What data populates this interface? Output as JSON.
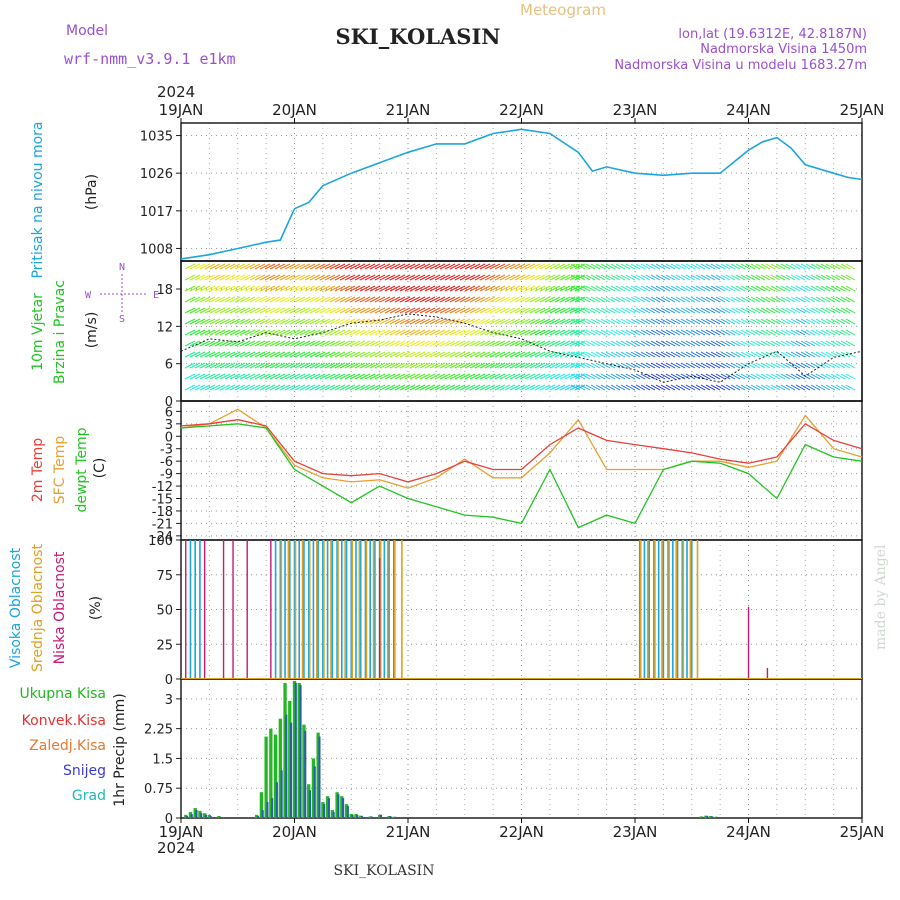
{
  "header": {
    "model_label": "Model",
    "model_name": "wrf-nmm_v3.9.1 e1km",
    "meteogram_label": "Meteogram",
    "station": "SKI_KOLASIN",
    "coords": "lon,lat (19.6312E, 42.8187N)",
    "elevation": "Nadmorska Visina 1450m",
    "model_elevation": "Nadmorska Visina u modelu 1683.27m"
  },
  "footer": {
    "station": "SKI_KOLASIN",
    "watermark": "made by Angel"
  },
  "time_axis": {
    "year": "2024",
    "ticks": [
      "19JAN",
      "20JAN",
      "21JAN",
      "22JAN",
      "23JAN",
      "24JAN",
      "25JAN"
    ]
  },
  "panels": {
    "pressure": {
      "title": "Pritisak na nivou mora",
      "unit": "(hPa)"
    },
    "wind": {
      "title1": "10m Vjetar",
      "title2": "Brzina i Pravac",
      "unit": "(m/s)",
      "compass": {
        "n": "N",
        "s": "S",
        "e": "E",
        "w": "W"
      }
    },
    "temp": {
      "title1": "2m Temp",
      "title2": "SFC Temp",
      "title3": "dewpt Temp",
      "unit": "(C)"
    },
    "cloud": {
      "title1": "Visoka Oblacnost",
      "title2": "Srednja Oblacnost",
      "title3": "Niska Oblacnost",
      "unit": "(%)"
    },
    "precip": {
      "legend": [
        "Ukupna Kisa",
        "Konvek.Kisa",
        "Zaledj.Kisa",
        "Snijeg",
        "Grad"
      ],
      "unit": "1hr Precip (mm)"
    }
  },
  "colors": {
    "pressure": "#1aa6e0",
    "temp2m": "#e8413a",
    "sfc": "#e8a030",
    "dew": "#22c422",
    "high": "#1aa6e0",
    "mid": "#e0a020",
    "low": "#c8187a",
    "total": "#22b822",
    "conv": "#e83030",
    "frz": "#e87830",
    "snow": "#3a3ae0",
    "hail": "#20b8b8"
  },
  "chart_data": [
    {
      "type": "line",
      "title": "Pritisak na nivou mora",
      "ylabel": "(hPa)",
      "yticks": [
        1008,
        1017,
        1026,
        1035
      ],
      "ylim": [
        1005,
        1038
      ],
      "x": [
        "2024-01-19 00:00",
        "2024-01-19 06:00",
        "2024-01-19 12:00",
        "2024-01-19 18:00",
        "2024-01-19 21:00",
        "2024-01-20 00:00",
        "2024-01-20 03:00",
        "2024-01-20 06:00",
        "2024-01-20 12:00",
        "2024-01-20 18:00",
        "2024-01-21 00:00",
        "2024-01-21 06:00",
        "2024-01-21 12:00",
        "2024-01-21 18:00",
        "2024-01-22 00:00",
        "2024-01-22 06:00",
        "2024-01-22 12:00",
        "2024-01-22 15:00",
        "2024-01-22 18:00",
        "2024-01-23 00:00",
        "2024-01-23 06:00",
        "2024-01-23 12:00",
        "2024-01-23 18:00",
        "2024-01-24 00:00",
        "2024-01-24 03:00",
        "2024-01-24 06:00",
        "2024-01-24 09:00",
        "2024-01-24 12:00",
        "2024-01-24 18:00",
        "2024-01-24 21:00",
        "2024-01-25 00:00"
      ],
      "series": [
        {
          "values": [
            1005.5,
            1006.5,
            1008,
            1009.5,
            1010,
            1017.5,
            1019,
            1023,
            1026,
            1028.5,
            1031,
            1033,
            1033,
            1035.5,
            1036.5,
            1035.5,
            1031,
            1026.5,
            1027.5,
            1026,
            1025.5,
            1026,
            1026,
            1031.5,
            1033.5,
            1034.5,
            1032,
            1028,
            1026,
            1025,
            1024.5
          ]
        }
      ]
    },
    {
      "type": "line",
      "title": "10m Vjetar Brzina i Pravac",
      "ylabel": "(m/s)",
      "yticks": [
        0,
        6,
        12,
        18
      ],
      "ylim": [
        0,
        22.5
      ],
      "x": [
        "2024-01-19 00:00",
        "2024-01-19 06:00",
        "2024-01-19 12:00",
        "2024-01-19 18:00",
        "2024-01-20 00:00",
        "2024-01-20 06:00",
        "2024-01-20 12:00",
        "2024-01-20 18:00",
        "2024-01-21 00:00",
        "2024-01-21 06:00",
        "2024-01-21 12:00",
        "2024-01-21 18:00",
        "2024-01-22 00:00",
        "2024-01-22 06:00",
        "2024-01-22 12:00",
        "2024-01-22 18:00",
        "2024-01-23 00:00",
        "2024-01-23 06:00",
        "2024-01-23 12:00",
        "2024-01-23 18:00",
        "2024-01-24 00:00",
        "2024-01-24 06:00",
        "2024-01-24 12:00",
        "2024-01-24 18:00",
        "2024-01-25 00:00"
      ],
      "series": [
        {
          "values": [
            8,
            10,
            9.5,
            11,
            10,
            11,
            12.5,
            13,
            14,
            13.5,
            12.5,
            11,
            10,
            8,
            7,
            6,
            5,
            3,
            4,
            3,
            6,
            8,
            4,
            7,
            8
          ]
        }
      ]
    },
    {
      "type": "line",
      "title": "Temp",
      "ylabel": "(C)",
      "yticks": [
        6,
        3,
        0,
        -3,
        -6,
        -9,
        -12,
        -15,
        -18,
        -21,
        -24
      ],
      "ylim": [
        -25,
        8.5
      ],
      "x": [
        "2024-01-19 00:00",
        "2024-01-19 06:00",
        "2024-01-19 12:00",
        "2024-01-19 18:00",
        "2024-01-20 00:00",
        "2024-01-20 06:00",
        "2024-01-20 12:00",
        "2024-01-20 18:00",
        "2024-01-21 00:00",
        "2024-01-21 06:00",
        "2024-01-21 12:00",
        "2024-01-21 18:00",
        "2024-01-22 00:00",
        "2024-01-22 06:00",
        "2024-01-22 12:00",
        "2024-01-22 18:00",
        "2024-01-23 00:00",
        "2024-01-23 06:00",
        "2024-01-23 12:00",
        "2024-01-23 18:00",
        "2024-01-24 00:00",
        "2024-01-24 06:00",
        "2024-01-24 12:00",
        "2024-01-24 18:00",
        "2024-01-25 00:00"
      ],
      "series": [
        {
          "name": "2m Temp",
          "values": [
            2.5,
            3,
            4,
            2.5,
            -6,
            -9,
            -9.5,
            -9,
            -11,
            -9,
            -6,
            -8,
            -8,
            -2,
            2,
            -1,
            -2,
            -3,
            -4,
            -5.5,
            -6.5,
            -5,
            3,
            -1,
            -3
          ]
        },
        {
          "name": "SFC Temp",
          "values": [
            2,
            3,
            6.5,
            2,
            -7,
            -10,
            -11,
            -10.5,
            -12.5,
            -10,
            -5.5,
            -10,
            -10,
            -4,
            4,
            -8,
            -8,
            -8,
            -6,
            -6,
            -7.5,
            -6,
            5,
            -3,
            -5
          ]
        },
        {
          "name": "dewpt Temp",
          "values": [
            2,
            2.5,
            3,
            2,
            -8,
            -12,
            -16,
            -12,
            -15,
            -17,
            -19,
            -19.5,
            -21,
            -8,
            -22,
            -19,
            -21,
            -8,
            -6,
            -6.5,
            -9,
            -15,
            -2,
            -5,
            -6
          ]
        }
      ]
    },
    {
      "type": "bar",
      "title": "Oblacnost",
      "ylabel": "(%)",
      "yticks": [
        0,
        25,
        50,
        75,
        100
      ],
      "ylim": [
        0,
        100
      ],
      "series": [
        {
          "name": "Visoka Oblacnost",
          "periods": [
            [
              "2024-01-19 02:00",
              "2024-01-19 04:00"
            ],
            [
              "2024-01-19 20:00",
              "2024-01-20 22:00"
            ],
            [
              "2024-01-23 01:00",
              "2024-01-23 12:00"
            ]
          ],
          "values": [
            100,
            100,
            100
          ]
        },
        {
          "name": "Srednja Oblacnost",
          "periods": [
            [
              "2024-01-19 21:00",
              "2024-01-20 23:00"
            ],
            [
              "2024-01-23 01:00",
              "2024-01-23 14:00"
            ]
          ],
          "values": [
            100,
            100
          ]
        },
        {
          "name": "Niska Oblacnost",
          "spikes": [
            [
              "2024-01-19 01:00",
              100
            ],
            [
              "2024-01-19 05:00",
              100
            ],
            [
              "2024-01-19 09:00",
              100
            ],
            [
              "2024-01-19 11:00",
              100
            ],
            [
              "2024-01-19 14:00",
              100
            ],
            [
              "2024-01-19 19:00",
              100
            ],
            [
              "2024-01-20 18:00",
              87
            ],
            [
              "2024-01-24 00:00",
              52
            ],
            [
              "2024-01-24 04:00",
              8
            ]
          ]
        }
      ]
    },
    {
      "type": "bar",
      "title": "1hr Precip",
      "ylabel": "1hr Precip (mm)",
      "yticks": [
        0,
        0.75,
        1.5,
        2.25,
        3
      ],
      "ylim": [
        0,
        3.5
      ],
      "x": [
        "2024-01-19 01:00",
        "2024-01-19 02:00",
        "2024-01-19 03:00",
        "2024-01-19 04:00",
        "2024-01-19 05:00",
        "2024-01-19 06:00",
        "2024-01-19 08:00",
        "2024-01-19 16:00",
        "2024-01-19 17:00",
        "2024-01-19 18:00",
        "2024-01-19 19:00",
        "2024-01-19 20:00",
        "2024-01-19 21:00",
        "2024-01-19 22:00",
        "2024-01-19 23:00",
        "2024-01-20 00:00",
        "2024-01-20 01:00",
        "2024-01-20 02:00",
        "2024-01-20 03:00",
        "2024-01-20 04:00",
        "2024-01-20 05:00",
        "2024-01-20 06:00",
        "2024-01-20 07:00",
        "2024-01-20 08:00",
        "2024-01-20 09:00",
        "2024-01-20 10:00",
        "2024-01-20 11:00",
        "2024-01-20 12:00",
        "2024-01-20 13:00",
        "2024-01-20 14:00",
        "2024-01-20 16:00",
        "2024-01-20 18:00",
        "2024-01-20 20:00",
        "2024-01-20 21:00",
        "2024-01-23 14:00",
        "2024-01-23 15:00",
        "2024-01-23 16:00",
        "2024-01-23 17:00"
      ],
      "series": [
        {
          "name": "Ukupna Kisa",
          "values": [
            0.08,
            0.15,
            0.25,
            0.18,
            0.12,
            0.08,
            0.05,
            0.08,
            0.65,
            2.05,
            2.25,
            2.1,
            2.5,
            3.4,
            2.95,
            3.45,
            3.4,
            2.35,
            0.85,
            1.5,
            2.15,
            0.4,
            0.55,
            0.2,
            0.65,
            0.55,
            0.35,
            0.1,
            0.1,
            0.06,
            0.04,
            0.08,
            0.05,
            0.03,
            0.04,
            0.06,
            0.05,
            0.03
          ]
        },
        {
          "name": "Snijeg",
          "values": [
            0.05,
            0.1,
            0.2,
            0.12,
            0.08,
            0.05,
            0.03,
            0.05,
            0.2,
            0.4,
            0.5,
            0.9,
            1.2,
            2.6,
            2.4,
            3.4,
            3.35,
            2.2,
            0.7,
            1.3,
            2.05,
            0.35,
            0.5,
            0.15,
            0.6,
            0.5,
            0.3,
            0.08,
            0.08,
            0.05,
            0.04,
            0.08,
            0.05,
            0.03,
            0.03,
            0.05,
            0.04,
            0.03
          ]
        }
      ]
    }
  ]
}
